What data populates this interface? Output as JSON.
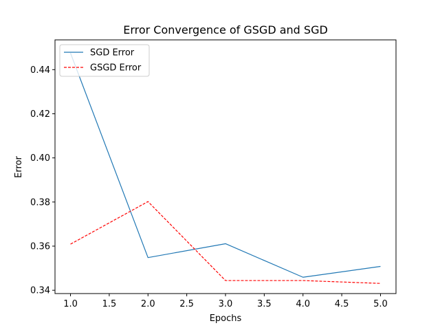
{
  "chart_data": {
    "type": "line",
    "title": "Error Convergence of GSGD and SGD",
    "xlabel": "Epochs",
    "ylabel": "Error",
    "x": [
      1.0,
      2.0,
      3.0,
      4.0,
      5.0
    ],
    "xlim": [
      0.8,
      5.2
    ],
    "ylim": [
      0.3385,
      0.4535
    ],
    "xticks": [
      1.0,
      1.5,
      2.0,
      2.5,
      3.0,
      3.5,
      4.0,
      4.5,
      5.0
    ],
    "xtick_labels": [
      "1.0",
      "1.5",
      "2.0",
      "2.5",
      "3.0",
      "3.5",
      "4.0",
      "4.5",
      "5.0"
    ],
    "yticks": [
      0.34,
      0.36,
      0.38,
      0.4,
      0.42,
      0.44
    ],
    "ytick_labels": [
      "0.34",
      "0.36",
      "0.38",
      "0.40",
      "0.42",
      "0.44"
    ],
    "grid": false,
    "legend_position": "top-left",
    "series": [
      {
        "name": "SGD Error",
        "values": [
          0.4475,
          0.3548,
          0.3611,
          0.3459,
          0.3508
        ],
        "color": "#1f77b4",
        "style": "solid"
      },
      {
        "name": "GSGD Error",
        "values": [
          0.3609,
          0.3802,
          0.3444,
          0.3444,
          0.3431
        ],
        "color": "#ff0000",
        "style": "dashed"
      }
    ]
  }
}
